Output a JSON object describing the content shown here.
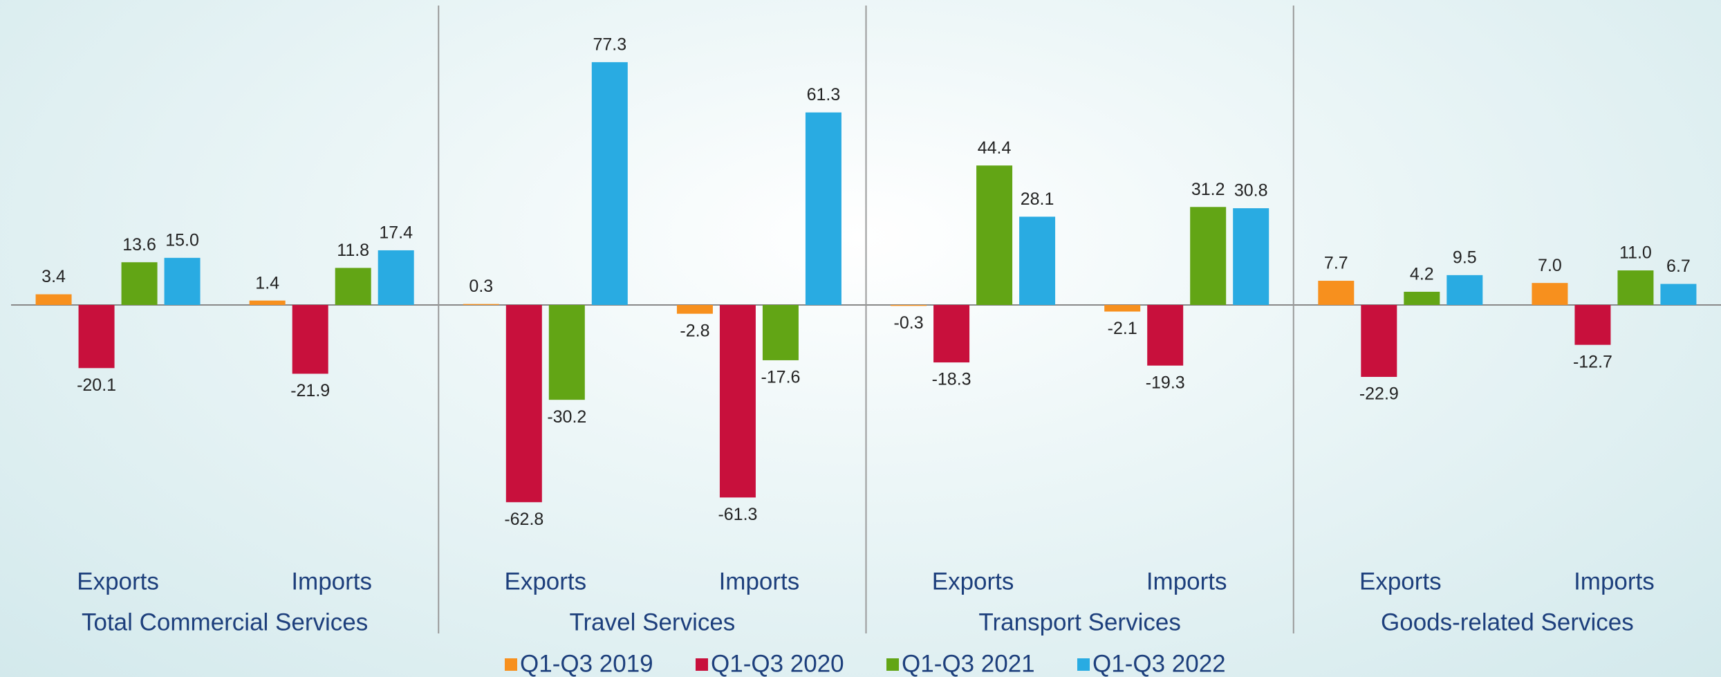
{
  "chart_data": {
    "type": "bar",
    "categories": [
      "Exports",
      "Imports",
      "Exports",
      "Imports",
      "Exports",
      "Imports",
      "Exports",
      "Imports"
    ],
    "groups": [
      "Total Commercial Services",
      "Travel Services",
      "Transport Services",
      "Goods-related Services"
    ],
    "series": [
      {
        "name": "Q1-Q3 2019",
        "color": "#f7901e",
        "values": [
          3.4,
          1.4,
          0.3,
          -2.8,
          -0.3,
          -2.1,
          7.7,
          7.0
        ],
        "value_labels": [
          "3.4",
          "1.4",
          "0.3",
          "-2.8",
          "-0.3",
          "-2.1",
          "7.7",
          "7.0"
        ]
      },
      {
        "name": "Q1-Q3 2020",
        "color": "#c8103c",
        "values": [
          -20.1,
          -21.9,
          -62.8,
          -61.3,
          -18.3,
          -19.3,
          -22.9,
          -12.7
        ],
        "value_labels": [
          "-20.1",
          "-21.9",
          "-62.8",
          "-61.3",
          "-18.3",
          "-19.3",
          "-22.9",
          "-12.7"
        ]
      },
      {
        "name": "Q1-Q3 2021",
        "color": "#62a515",
        "values": [
          13.6,
          11.8,
          -30.2,
          -17.6,
          44.4,
          31.2,
          4.2,
          11.0
        ],
        "value_labels": [
          "13.6",
          "11.8",
          "-30.2",
          "-17.6",
          "44.4",
          "31.2",
          "4.2",
          "11.0"
        ]
      },
      {
        "name": "Q1-Q3 2022",
        "color": "#29abe2",
        "values": [
          15.0,
          17.4,
          77.3,
          61.3,
          28.1,
          30.8,
          9.5,
          6.7
        ],
        "value_labels": [
          "15.0",
          "17.4",
          "77.3",
          "61.3",
          "28.1",
          "30.8",
          "9.5",
          "6.7"
        ]
      }
    ]
  }
}
